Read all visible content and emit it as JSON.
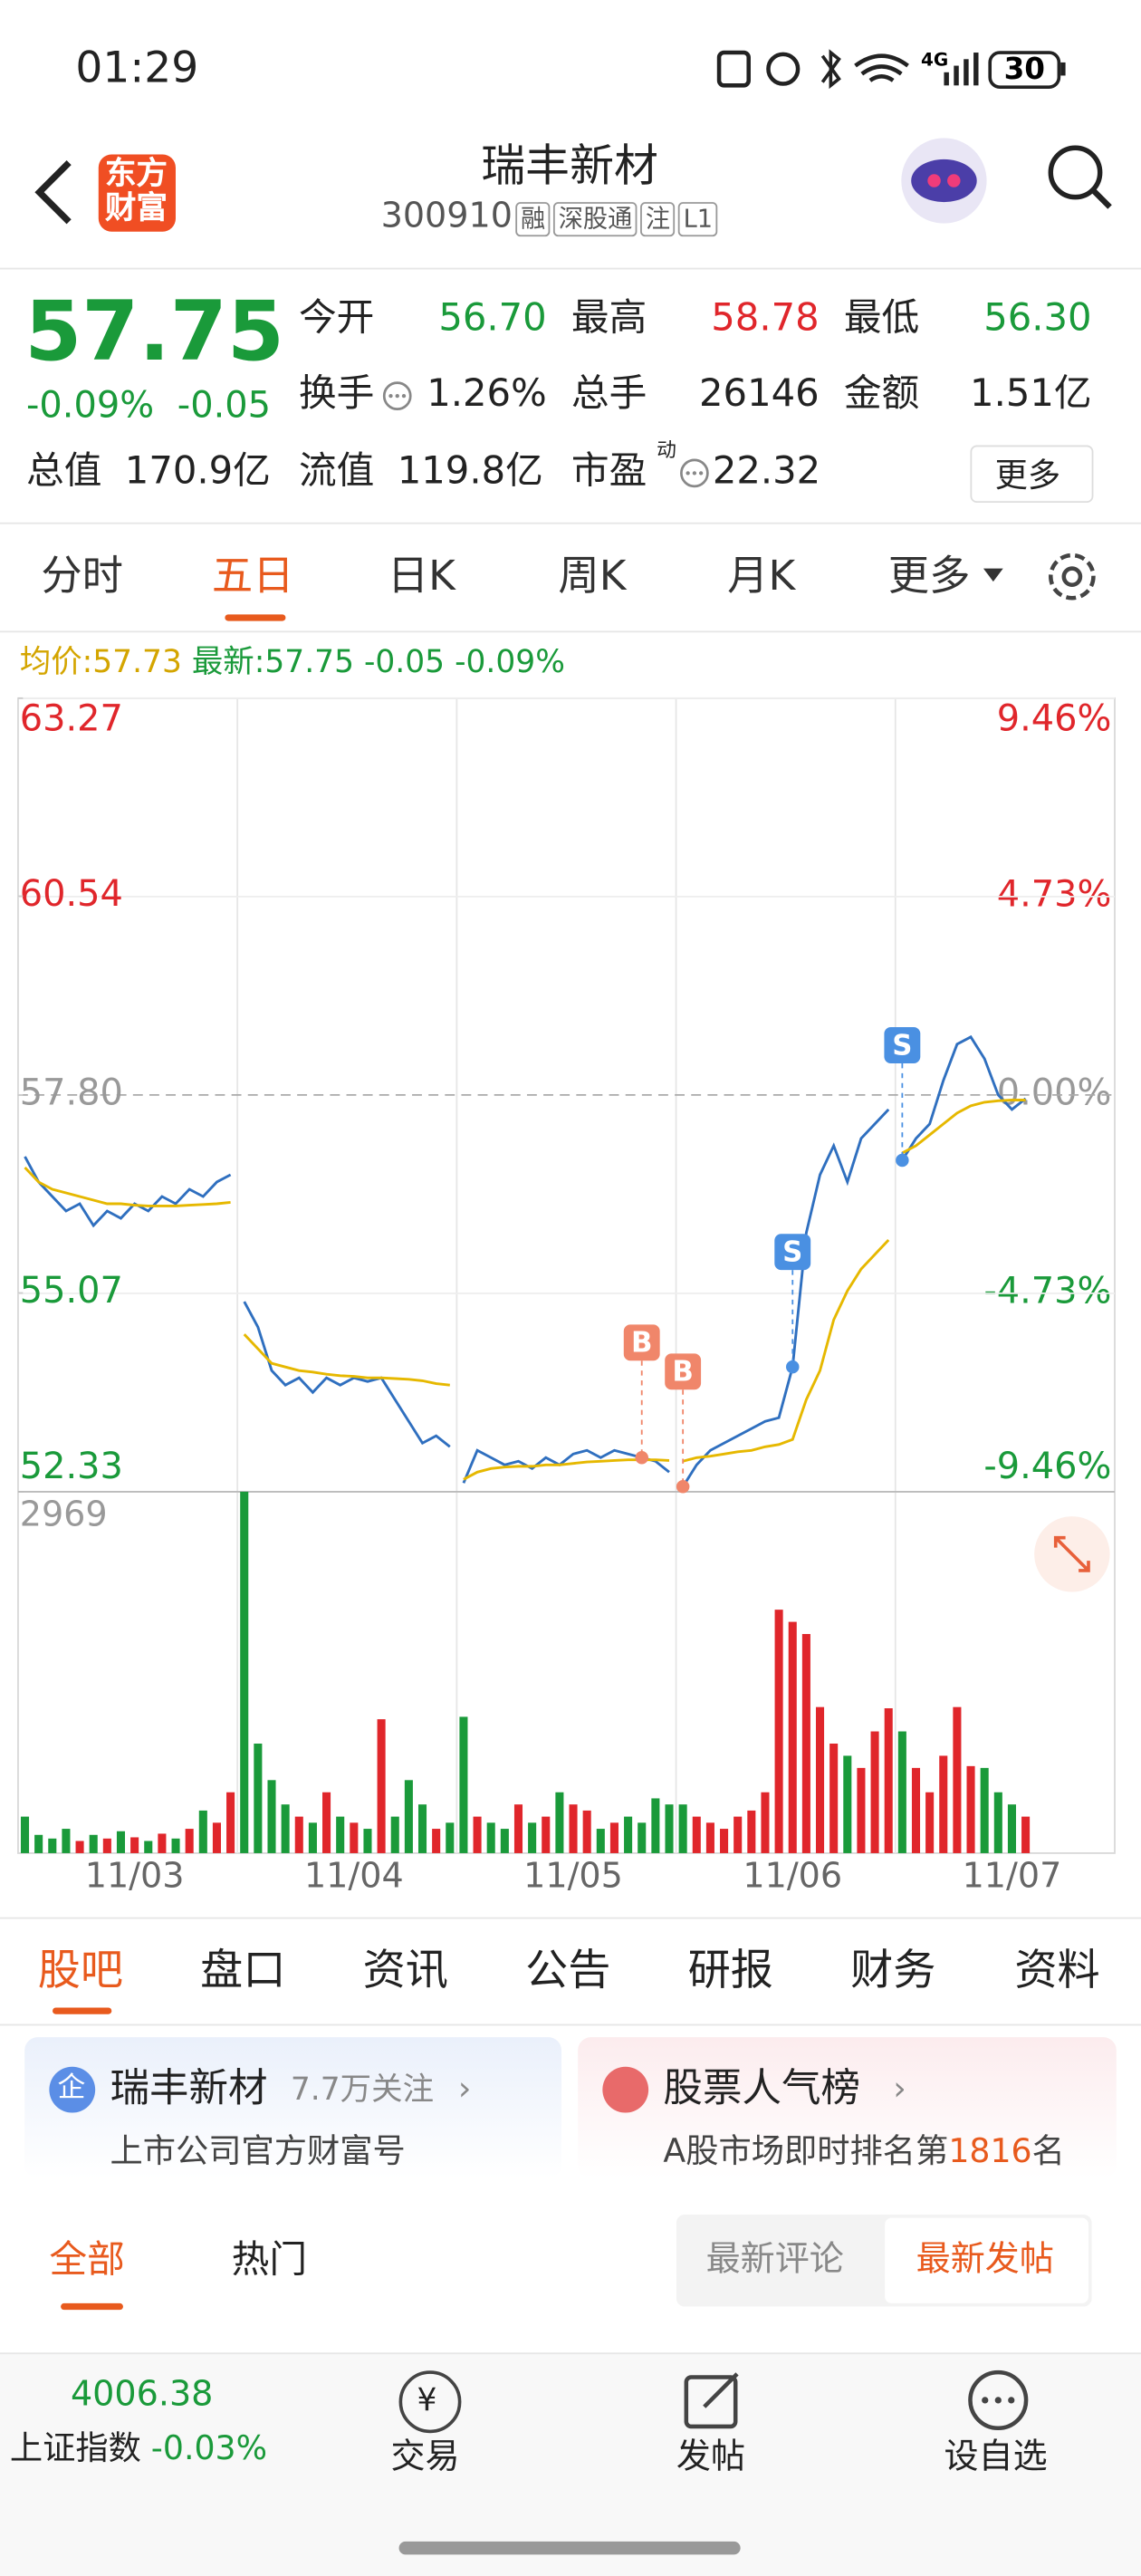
{
  "status_bar": {
    "time": "01:29",
    "network": "4G",
    "battery": "30"
  },
  "header": {
    "logo_text": [
      "东方",
      "财富"
    ],
    "title": "瑞丰新材",
    "code": "300910",
    "tags": [
      "融",
      "深股通",
      "注",
      "L1"
    ]
  },
  "quote": {
    "price": "57.75",
    "change_pct": "-0.09%",
    "change": "-0.05",
    "fields": [
      {
        "label": "今开",
        "value": "56.70"
      },
      {
        "label": "最高",
        "value": "58.78"
      },
      {
        "label": "最低",
        "value": "56.30"
      },
      {
        "label": "换手",
        "value": "1.26%"
      },
      {
        "label": "总手",
        "value": "26146"
      },
      {
        "label": "金额",
        "value": "1.51亿"
      },
      {
        "label": "总值",
        "value": "170.9亿"
      },
      {
        "label": "流值",
        "value": "119.8亿"
      },
      {
        "label": "市盈",
        "sup": "动",
        "value": "22.32"
      }
    ],
    "more": "更多"
  },
  "period_tabs": [
    "分时",
    "五日",
    "日K",
    "周K",
    "月K",
    "更多"
  ],
  "legend": {
    "avg": "57.73",
    "last": "57.75",
    "change": "-0.05",
    "change_pct": "-0.09%"
  },
  "chart_data": [
    {
      "type": "line",
      "categories": [
        null,
        null,
        null,
        null,
        null,
        null,
        null,
        null,
        "11/03",
        null,
        null,
        null,
        null,
        null,
        null,
        null,
        null,
        null,
        null,
        null,
        null,
        null,
        null,
        null,
        "11/04",
        null,
        null,
        null,
        null,
        null,
        null,
        null,
        null,
        null,
        null,
        null,
        null,
        null,
        null,
        null,
        "11/05",
        null,
        null,
        null,
        null,
        null,
        null,
        null,
        null,
        null,
        null,
        null,
        null,
        null,
        null,
        null,
        "11/06",
        null,
        null,
        null,
        null,
        null,
        null,
        null,
        null,
        null,
        null,
        null,
        null,
        null,
        null,
        null,
        "11/07",
        null,
        null,
        null,
        null,
        null,
        null,
        null
      ],
      "series": [
        {
          "name": "最新:",
          "color": "#2f6fbf",
          "values": [
            56.95,
            56.6,
            56.4,
            56.2,
            56.3,
            56.0,
            56.2,
            56.1,
            56.3,
            56.2,
            56.4,
            56.3,
            56.5,
            56.4,
            56.6,
            56.7,
            54.95,
            54.6,
            54.0,
            53.8,
            53.9,
            53.7,
            53.9,
            53.8,
            53.9,
            53.85,
            53.9,
            53.6,
            53.3,
            53.0,
            53.1,
            52.95,
            52.45,
            52.9,
            52.8,
            52.7,
            52.75,
            52.65,
            52.8,
            52.7,
            52.85,
            52.9,
            52.8,
            52.9,
            52.85,
            52.8,
            52.75,
            52.6,
            52.4,
            52.7,
            52.9,
            53.0,
            53.1,
            53.2,
            53.3,
            53.35,
            54.05,
            55.9,
            56.7,
            57.1,
            56.6,
            57.2,
            57.4,
            57.6,
            56.9,
            57.2,
            57.4,
            58.0,
            58.5,
            58.6,
            58.3,
            57.8,
            57.6,
            57.75,
            null,
            null,
            null,
            null,
            null,
            null
          ]
        },
        {
          "name": "均价:",
          "color": "#e6b800",
          "values": [
            56.8,
            56.6,
            56.5,
            56.45,
            56.4,
            56.35,
            56.3,
            56.3,
            56.28,
            56.27,
            56.27,
            56.27,
            56.28,
            56.29,
            56.3,
            56.32,
            54.5,
            54.3,
            54.1,
            54.05,
            54.0,
            53.98,
            53.95,
            53.93,
            53.92,
            53.9,
            53.9,
            53.89,
            53.88,
            53.86,
            53.82,
            53.8,
            52.5,
            52.6,
            52.65,
            52.67,
            52.68,
            52.68,
            52.7,
            52.7,
            52.72,
            52.74,
            52.75,
            52.76,
            52.77,
            52.77,
            52.77,
            52.76,
            52.75,
            52.8,
            52.82,
            52.85,
            52.88,
            52.9,
            52.95,
            52.98,
            53.05,
            53.6,
            54.0,
            54.7,
            55.1,
            55.4,
            55.6,
            55.8,
            57.0,
            57.1,
            57.25,
            57.4,
            57.55,
            57.65,
            57.7,
            57.72,
            57.73,
            57.73,
            null,
            null,
            null,
            null,
            null,
            null
          ]
        }
      ],
      "ylim": [
        52.33,
        63.27
      ],
      "yticks": [
        52.33,
        55.07,
        {
          "value": 57.8,
          "label": "57.80"
        },
        60.54,
        63.27
      ],
      "y2lim": [
        -9.46,
        9.46
      ],
      "y2ticks": [
        {
          "value": -9.46,
          "label": "-9.46%"
        },
        {
          "value": -4.73,
          "label": "-4.73%"
        },
        {
          "value": 0,
          "label": "0.00%"
        },
        {
          "value": 4.73,
          "label": "4.73%"
        },
        {
          "value": 9.46,
          "label": "9.46%"
        }
      ],
      "grid": true,
      "markers": [
        {
          "label": "B",
          "index": 45,
          "value": 52.8,
          "color": "#f0866a"
        },
        {
          "label": "B",
          "index": 48,
          "value": 52.4,
          "color": "#f0866a"
        },
        {
          "label": "S",
          "index": 56,
          "value": 54.05,
          "color": "#4a90e2"
        },
        {
          "label": "S",
          "index": 64,
          "value": 56.9,
          "color": "#4a90e2"
        }
      ]
    },
    {
      "type": "bar",
      "values": [
        300,
        150,
        120,
        200,
        100,
        150,
        120,
        180,
        130,
        100,
        160,
        120,
        200,
        350,
        250,
        500,
        2969,
        900,
        600,
        400,
        300,
        250,
        500,
        300,
        250,
        200,
        1100,
        300,
        600,
        400,
        200,
        250,
        1120,
        300,
        250,
        200,
        400,
        250,
        300,
        500,
        400,
        350,
        200,
        250,
        300,
        250,
        450,
        400,
        400,
        300,
        250,
        200,
        300,
        350,
        500,
        2000,
        1900,
        1800,
        1200,
        900,
        800,
        700,
        1000,
        1190,
        1000,
        700,
        500,
        800,
        1200,
        715,
        700,
        500,
        400,
        300,
        null,
        null,
        null,
        null,
        null,
        null
      ],
      "up_color": "#e0262b",
      "down_color": "#1a9a3a",
      "ylim": [
        0,
        2969
      ],
      "yticks": [
        2969
      ]
    }
  ],
  "stock_tabs": [
    "股吧",
    "盘口",
    "资讯",
    "公告",
    "研报",
    "财务",
    "资料"
  ],
  "cards": [
    {
      "badge": "企",
      "title": "瑞丰新材",
      "followers": "7.7万关注",
      "subtitle": "上市公司官方财富号"
    },
    {
      "title": "股票人气榜",
      "prefix": "A股市场即时排名第",
      "rank": "1816",
      "suffix": "名"
    }
  ],
  "filters": [
    "全部",
    "热门"
  ],
  "sort": [
    "最新评论",
    "最新发帖"
  ],
  "bottom_bar": {
    "index_value": "4006.38",
    "index_name": "上证指数",
    "index_change": "-0.03%",
    "trade_icon": "¥",
    "actions": [
      "交易",
      "发帖",
      "设自选"
    ]
  }
}
